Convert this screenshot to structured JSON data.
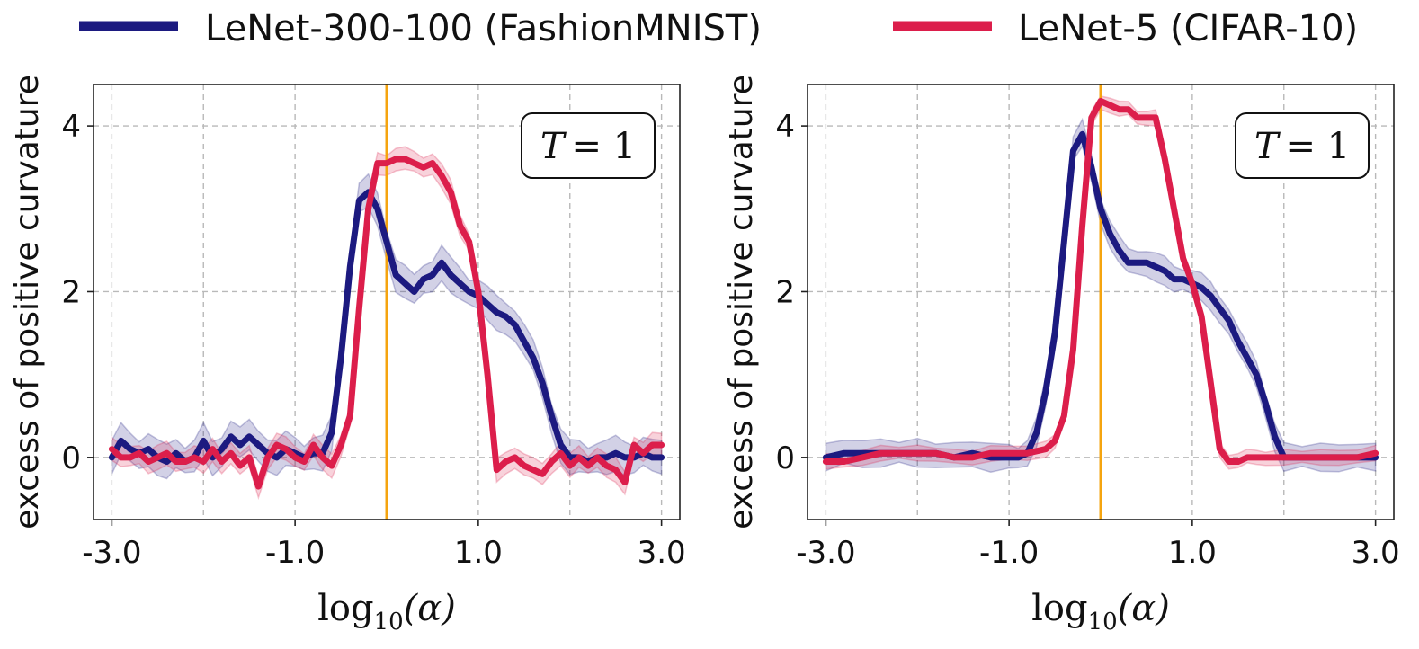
{
  "legend": [
    {
      "label": "LeNet-300-100 (FashionMNIST)",
      "color": "#1c1a80"
    },
    {
      "label": "LeNet-5 (CIFAR-10)",
      "color": "#dc1e4b"
    }
  ],
  "colors": {
    "blue": "#1c1a80",
    "red": "#dc1e4b",
    "vline": "#f5a40f",
    "grid": "#b9b9b9"
  },
  "chart_data": [
    {
      "type": "line",
      "title": "",
      "annotation": {
        "var": "T",
        "eq": "= 1"
      },
      "xlabel": {
        "base": "log",
        "sub": "10",
        "arg": "(α)"
      },
      "ylabel": "excess of positive curvature",
      "xlim": [
        -3.2,
        3.2
      ],
      "ylim": [
        -0.75,
        4.5
      ],
      "xticks": [
        -3.0,
        -1.0,
        1.0,
        3.0
      ],
      "xtick_labels": [
        "-3.0",
        "-1.0",
        "1.0",
        "3.0"
      ],
      "xgrid": [
        -3,
        -2,
        -1,
        0,
        1,
        2,
        3
      ],
      "yticks": [
        0,
        2,
        4
      ],
      "ytick_labels": [
        "0",
        "2",
        "4"
      ],
      "vline_x": 0,
      "series": [
        {
          "name": "LeNet-300-100 (FashionMNIST)",
          "color": "#1c1a80",
          "points": [
            [
              -3.0,
              0.0
            ],
            [
              -2.9,
              0.2
            ],
            [
              -2.8,
              0.1
            ],
            [
              -2.7,
              0.05
            ],
            [
              -2.6,
              0.1
            ],
            [
              -2.5,
              0.0
            ],
            [
              -2.4,
              -0.05
            ],
            [
              -2.3,
              0.05
            ],
            [
              -2.2,
              -0.05
            ],
            [
              -2.1,
              0.0
            ],
            [
              -2.0,
              0.2
            ],
            [
              -1.9,
              0.0
            ],
            [
              -1.8,
              0.1
            ],
            [
              -1.7,
              0.25
            ],
            [
              -1.6,
              0.15
            ],
            [
              -1.5,
              0.25
            ],
            [
              -1.4,
              0.15
            ],
            [
              -1.3,
              0.05
            ],
            [
              -1.2,
              0.0
            ],
            [
              -1.1,
              0.1
            ],
            [
              -1.0,
              0.05
            ],
            [
              -0.9,
              0.0
            ],
            [
              -0.8,
              0.05
            ],
            [
              -0.7,
              0.05
            ],
            [
              -0.6,
              0.3
            ],
            [
              -0.5,
              1.2
            ],
            [
              -0.4,
              2.3
            ],
            [
              -0.3,
              3.1
            ],
            [
              -0.2,
              3.2
            ],
            [
              -0.1,
              3.0
            ],
            [
              0.0,
              2.6
            ],
            [
              0.1,
              2.2
            ],
            [
              0.2,
              2.1
            ],
            [
              0.3,
              2.0
            ],
            [
              0.4,
              2.15
            ],
            [
              0.5,
              2.2
            ],
            [
              0.6,
              2.35
            ],
            [
              0.7,
              2.2
            ],
            [
              0.8,
              2.1
            ],
            [
              0.9,
              2.0
            ],
            [
              1.0,
              1.95
            ],
            [
              1.1,
              1.85
            ],
            [
              1.2,
              1.75
            ],
            [
              1.3,
              1.7
            ],
            [
              1.4,
              1.6
            ],
            [
              1.5,
              1.4
            ],
            [
              1.6,
              1.2
            ],
            [
              1.7,
              0.9
            ],
            [
              1.8,
              0.5
            ],
            [
              1.9,
              0.15
            ],
            [
              2.0,
              0.0
            ],
            [
              2.1,
              0.0
            ],
            [
              2.2,
              -0.05
            ],
            [
              2.3,
              0.0
            ],
            [
              2.4,
              0.0
            ],
            [
              2.5,
              0.05
            ],
            [
              2.6,
              0.0
            ],
            [
              2.7,
              0.0
            ],
            [
              2.8,
              0.05
            ],
            [
              2.9,
              0.0
            ],
            [
              3.0,
              0.0
            ]
          ],
          "band": 0.22
        },
        {
          "name": "LeNet-5 (CIFAR-10)",
          "color": "#dc1e4b",
          "points": [
            [
              -3.0,
              0.1
            ],
            [
              -2.9,
              0.0
            ],
            [
              -2.8,
              0.0
            ],
            [
              -2.7,
              0.05
            ],
            [
              -2.6,
              -0.05
            ],
            [
              -2.5,
              0.0
            ],
            [
              -2.4,
              0.05
            ],
            [
              -2.3,
              -0.05
            ],
            [
              -2.2,
              -0.05
            ],
            [
              -2.1,
              0.0
            ],
            [
              -2.0,
              -0.05
            ],
            [
              -1.9,
              0.1
            ],
            [
              -1.8,
              -0.05
            ],
            [
              -1.7,
              0.05
            ],
            [
              -1.6,
              -0.1
            ],
            [
              -1.5,
              0.0
            ],
            [
              -1.4,
              -0.35
            ],
            [
              -1.3,
              0.0
            ],
            [
              -1.2,
              0.15
            ],
            [
              -1.1,
              0.1
            ],
            [
              -1.0,
              0.0
            ],
            [
              -0.9,
              -0.05
            ],
            [
              -0.8,
              0.15
            ],
            [
              -0.7,
              0.0
            ],
            [
              -0.6,
              -0.1
            ],
            [
              -0.5,
              0.15
            ],
            [
              -0.4,
              0.5
            ],
            [
              -0.3,
              1.8
            ],
            [
              -0.2,
              3.0
            ],
            [
              -0.1,
              3.55
            ],
            [
              0.0,
              3.55
            ],
            [
              0.1,
              3.6
            ],
            [
              0.2,
              3.6
            ],
            [
              0.3,
              3.55
            ],
            [
              0.4,
              3.5
            ],
            [
              0.5,
              3.55
            ],
            [
              0.6,
              3.4
            ],
            [
              0.7,
              3.2
            ],
            [
              0.8,
              2.8
            ],
            [
              0.9,
              2.6
            ],
            [
              1.0,
              2.0
            ],
            [
              1.1,
              1.0
            ],
            [
              1.2,
              -0.15
            ],
            [
              1.3,
              -0.05
            ],
            [
              1.4,
              0.0
            ],
            [
              1.5,
              -0.1
            ],
            [
              1.6,
              -0.15
            ],
            [
              1.7,
              -0.2
            ],
            [
              1.8,
              -0.05
            ],
            [
              1.9,
              0.05
            ],
            [
              2.0,
              -0.1
            ],
            [
              2.1,
              0.0
            ],
            [
              2.2,
              -0.1
            ],
            [
              2.3,
              0.0
            ],
            [
              2.4,
              -0.1
            ],
            [
              2.5,
              -0.15
            ],
            [
              2.6,
              -0.3
            ],
            [
              2.7,
              0.15
            ],
            [
              2.8,
              0.05
            ],
            [
              2.9,
              0.15
            ],
            [
              3.0,
              0.15
            ]
          ],
          "band": 0.15
        }
      ]
    },
    {
      "type": "line",
      "title": "",
      "annotation": {
        "var": "T",
        "eq": "= 1"
      },
      "xlabel": {
        "base": "log",
        "sub": "10",
        "arg": "(α)"
      },
      "ylabel": "excess of positive curvature",
      "xlim": [
        -3.2,
        3.2
      ],
      "ylim": [
        -0.75,
        4.5
      ],
      "xticks": [
        -3.0,
        -1.0,
        1.0,
        3.0
      ],
      "xtick_labels": [
        "-3.0",
        "-1.0",
        "1.0",
        "3.0"
      ],
      "xgrid": [
        -3,
        -2,
        -1,
        0,
        1,
        2,
        3
      ],
      "yticks": [
        0,
        2,
        4
      ],
      "ytick_labels": [
        "0",
        "2",
        "4"
      ],
      "vline_x": 0,
      "series": [
        {
          "name": "LeNet-300-100 (FashionMNIST)",
          "color": "#1c1a80",
          "points": [
            [
              -3.0,
              0.0
            ],
            [
              -2.8,
              0.05
            ],
            [
              -2.6,
              0.05
            ],
            [
              -2.4,
              0.05
            ],
            [
              -2.2,
              0.05
            ],
            [
              -2.0,
              0.05
            ],
            [
              -1.8,
              0.05
            ],
            [
              -1.6,
              0.0
            ],
            [
              -1.4,
              0.05
            ],
            [
              -1.2,
              0.0
            ],
            [
              -1.0,
              0.0
            ],
            [
              -0.9,
              0.0
            ],
            [
              -0.8,
              0.05
            ],
            [
              -0.7,
              0.3
            ],
            [
              -0.6,
              0.8
            ],
            [
              -0.5,
              1.5
            ],
            [
              -0.4,
              2.6
            ],
            [
              -0.3,
              3.7
            ],
            [
              -0.2,
              3.9
            ],
            [
              -0.1,
              3.5
            ],
            [
              0.0,
              3.0
            ],
            [
              0.1,
              2.7
            ],
            [
              0.2,
              2.5
            ],
            [
              0.3,
              2.35
            ],
            [
              0.4,
              2.35
            ],
            [
              0.5,
              2.35
            ],
            [
              0.6,
              2.3
            ],
            [
              0.7,
              2.25
            ],
            [
              0.8,
              2.15
            ],
            [
              0.9,
              2.15
            ],
            [
              1.0,
              2.1
            ],
            [
              1.1,
              2.05
            ],
            [
              1.2,
              1.95
            ],
            [
              1.3,
              1.8
            ],
            [
              1.4,
              1.65
            ],
            [
              1.5,
              1.4
            ],
            [
              1.6,
              1.2
            ],
            [
              1.7,
              1.0
            ],
            [
              1.8,
              0.65
            ],
            [
              1.9,
              0.25
            ],
            [
              2.0,
              0.0
            ],
            [
              2.2,
              0.0
            ],
            [
              2.4,
              0.0
            ],
            [
              2.6,
              0.0
            ],
            [
              2.8,
              0.0
            ],
            [
              3.0,
              0.0
            ]
          ],
          "band": 0.18
        },
        {
          "name": "LeNet-5 (CIFAR-10)",
          "color": "#dc1e4b",
          "points": [
            [
              -3.0,
              -0.05
            ],
            [
              -2.8,
              -0.05
            ],
            [
              -2.6,
              0.0
            ],
            [
              -2.4,
              0.05
            ],
            [
              -2.2,
              0.05
            ],
            [
              -2.0,
              0.05
            ],
            [
              -1.8,
              0.05
            ],
            [
              -1.6,
              0.0
            ],
            [
              -1.4,
              0.0
            ],
            [
              -1.2,
              0.05
            ],
            [
              -1.0,
              0.05
            ],
            [
              -0.8,
              0.05
            ],
            [
              -0.6,
              0.1
            ],
            [
              -0.5,
              0.2
            ],
            [
              -0.4,
              0.5
            ],
            [
              -0.3,
              1.3
            ],
            [
              -0.2,
              2.8
            ],
            [
              -0.1,
              4.1
            ],
            [
              0.0,
              4.3
            ],
            [
              0.1,
              4.25
            ],
            [
              0.2,
              4.2
            ],
            [
              0.3,
              4.2
            ],
            [
              0.4,
              4.1
            ],
            [
              0.5,
              4.1
            ],
            [
              0.6,
              4.1
            ],
            [
              0.7,
              3.6
            ],
            [
              0.8,
              3.0
            ],
            [
              0.9,
              2.4
            ],
            [
              1.0,
              2.1
            ],
            [
              1.1,
              1.7
            ],
            [
              1.2,
              0.9
            ],
            [
              1.3,
              0.1
            ],
            [
              1.4,
              -0.05
            ],
            [
              1.5,
              -0.05
            ],
            [
              1.6,
              0.0
            ],
            [
              1.7,
              0.0
            ],
            [
              1.8,
              0.0
            ],
            [
              2.0,
              0.0
            ],
            [
              2.2,
              0.0
            ],
            [
              2.4,
              0.0
            ],
            [
              2.6,
              0.0
            ],
            [
              2.8,
              0.0
            ],
            [
              3.0,
              0.05
            ]
          ],
          "band": 0.1
        }
      ]
    }
  ]
}
